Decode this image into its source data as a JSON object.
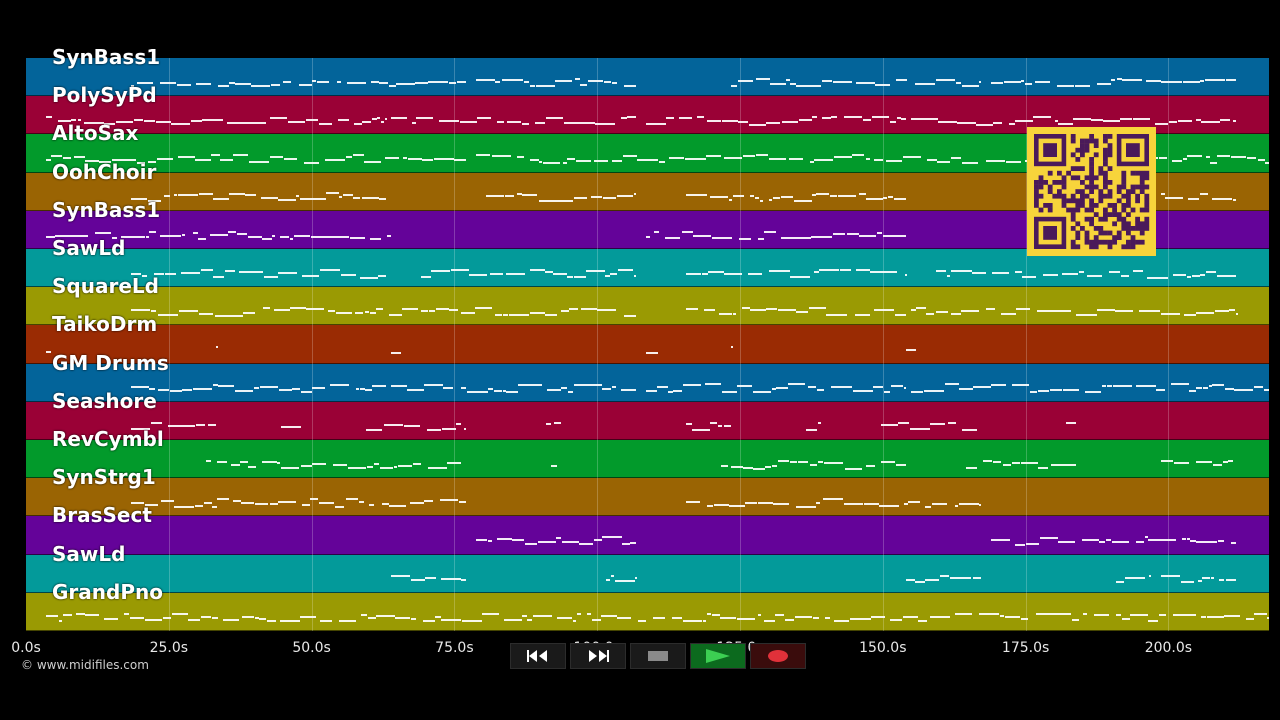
{
  "tracks": [
    {
      "name": "SynBass1",
      "color": "#03649a"
    },
    {
      "name": "PolySyPd",
      "color": "#9a0136"
    },
    {
      "name": "AltoSax",
      "color": "#029a2b"
    },
    {
      "name": "OohChoir",
      "color": "#9a6403"
    },
    {
      "name": "SynBass1",
      "color": "#640399"
    },
    {
      "name": "SawLd",
      "color": "#039a9a"
    },
    {
      "name": "SquareLd",
      "color": "#9a9a03"
    },
    {
      "name": "TaikoDrm",
      "color": "#9a2b03"
    },
    {
      "name": "GM Drums",
      "color": "#03649a"
    },
    {
      "name": "Seashore",
      "color": "#9a0136"
    },
    {
      "name": "RevCymbl",
      "color": "#029a2b"
    },
    {
      "name": "SynStrg1",
      "color": "#9a6403"
    },
    {
      "name": "BrasSect",
      "color": "#640399"
    },
    {
      "name": "SawLd",
      "color": "#039a9a"
    },
    {
      "name": "GrandPno",
      "color": "#9a9a03"
    }
  ],
  "timeline": {
    "max_seconds": 218,
    "ticks": [
      {
        "seconds": 0,
        "label": "0.0s"
      },
      {
        "seconds": 25,
        "label": "25.0s"
      },
      {
        "seconds": 50,
        "label": "50.0s"
      },
      {
        "seconds": 75,
        "label": "75.0s"
      },
      {
        "seconds": 100,
        "label": "100.0s"
      },
      {
        "seconds": 125,
        "label": "125.0s"
      },
      {
        "seconds": 150,
        "label": "150.0s"
      },
      {
        "seconds": 175,
        "label": "175.0s"
      },
      {
        "seconds": 200,
        "label": "200.0s"
      }
    ]
  },
  "copyright": "© www.midifiles.com",
  "transport": {
    "rewind": "rewind-icon",
    "fast_forward": "fast-forward-icon",
    "stop": "stop-icon",
    "play": "play-icon",
    "record": "record-icon"
  },
  "qr_code": "qr-code-icon"
}
